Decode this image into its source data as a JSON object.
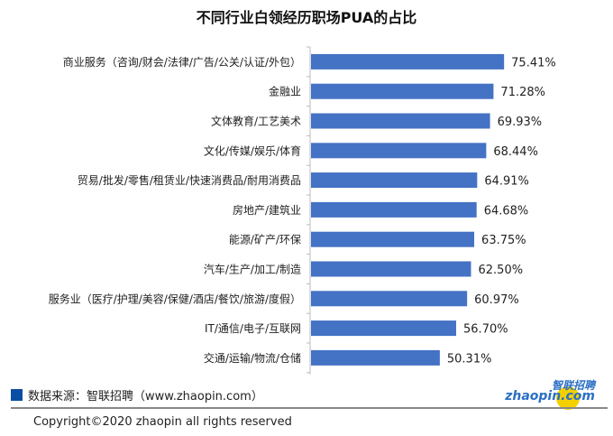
{
  "chart_data": {
    "type": "bar",
    "orientation": "horizontal",
    "title": "不同行业白领经历职场PUA的占比",
    "categories": [
      "商业服务（咨询/财会/法律/广告/公关/认证/外包）",
      "金融业",
      "文体教育/工艺美术",
      "文化/传媒/娱乐/体育",
      "贸易/批发/零售/租赁业/快速消费品/耐用消费品",
      "房地产/建筑业",
      "能源/矿产/环保",
      "汽车/生产/加工/制造",
      "服务业（医疗/护理/美容/保健/酒店/餐饮/旅游/度假）",
      "IT/通信/电子/互联网",
      "交通/运输/物流/仓储"
    ],
    "values": [
      75.41,
      71.28,
      69.93,
      68.44,
      64.91,
      64.68,
      63.75,
      62.5,
      60.97,
      56.7,
      50.31
    ],
    "data_labels": [
      "75.41%",
      "71.28%",
      "69.93%",
      "68.44%",
      "64.91%",
      "64.68%",
      "63.75%",
      "62.50%",
      "60.97%",
      "56.70%",
      "50.31%"
    ],
    "unit": "%",
    "bar_color": "#4472c4",
    "grid": false,
    "legend": "none"
  },
  "footer": {
    "source": "数据来源：智联招聘（www.zhaopin.com）",
    "copyright": "Copyright©2020 zhaopin all rights reserved",
    "logo_cn": "智联招聘",
    "logo_en": "zhaopin.com"
  }
}
